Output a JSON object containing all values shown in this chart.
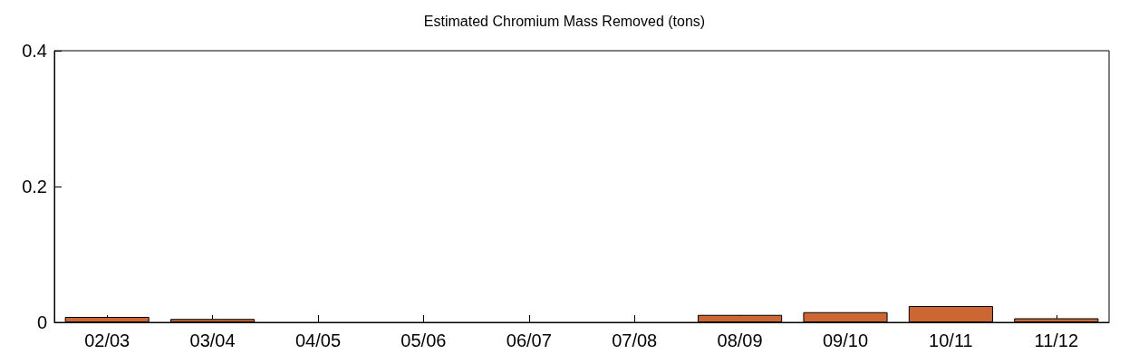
{
  "chart_data": {
    "type": "bar",
    "title": "Estimated Chromium Mass Removed (tons)",
    "categories": [
      "02/03",
      "03/04",
      "04/05",
      "05/06",
      "06/07",
      "07/08",
      "08/09",
      "09/10",
      "10/11",
      "11/12"
    ],
    "values": [
      0.008,
      0.005,
      0,
      0,
      0,
      0,
      0.011,
      0.015,
      0.024,
      0.006
    ],
    "color": "#cc6633",
    "ylim": [
      0,
      0.4
    ],
    "yticks": [
      0,
      0.2,
      0.4
    ],
    "grid": false
  }
}
